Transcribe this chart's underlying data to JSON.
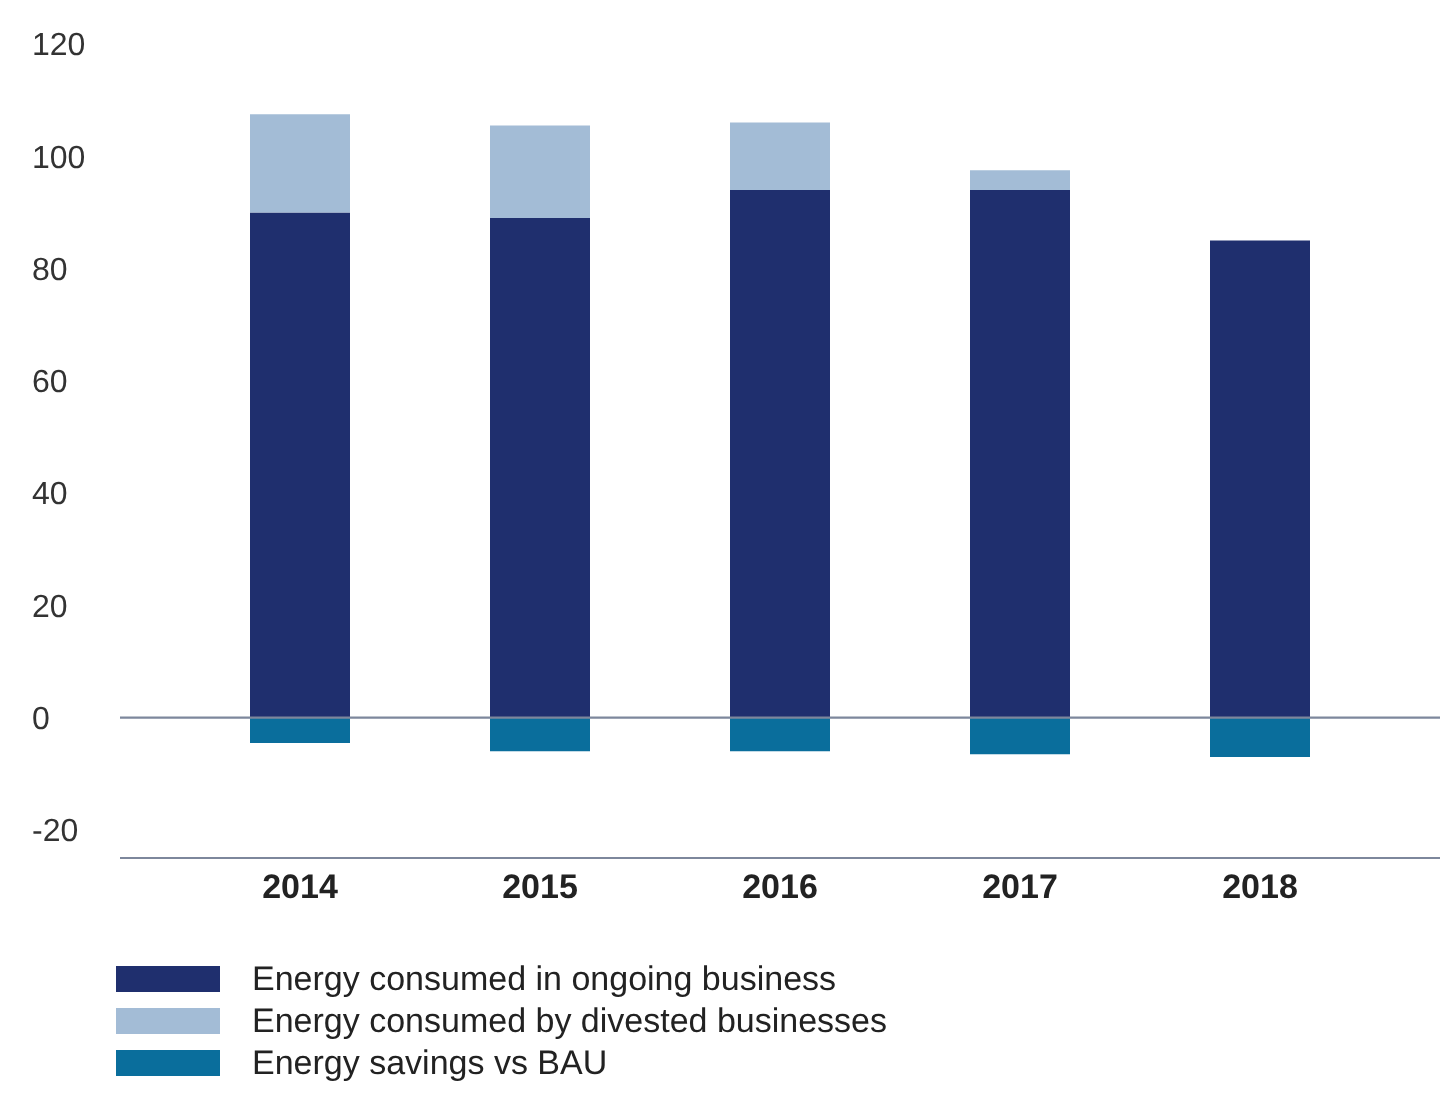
{
  "chart_data": {
    "type": "bar",
    "stacked": true,
    "categories": [
      "2014",
      "2015",
      "2016",
      "2017",
      "2018"
    ],
    "series": [
      {
        "name": "Energy consumed in ongoing business",
        "color": "#1f2f6e",
        "values": [
          90,
          89,
          94,
          94,
          85
        ]
      },
      {
        "name": "Energy consumed by divested businesses",
        "color": "#a3bcd6",
        "values": [
          17.5,
          16.5,
          12,
          3.5,
          null
        ]
      },
      {
        "name": "Energy savings vs BAU",
        "color": "#0a6e9c",
        "values": [
          -4.5,
          -6,
          -6,
          -6.5,
          -7
        ]
      }
    ],
    "ylim": [
      -25,
      120
    ],
    "yticks": [
      -20,
      0,
      20,
      40,
      60,
      80,
      100,
      120
    ],
    "ref_lines": [
      {
        "axis": "y",
        "value": 0,
        "color": "#7d879c"
      }
    ],
    "grid": false,
    "legend": "bottom"
  }
}
